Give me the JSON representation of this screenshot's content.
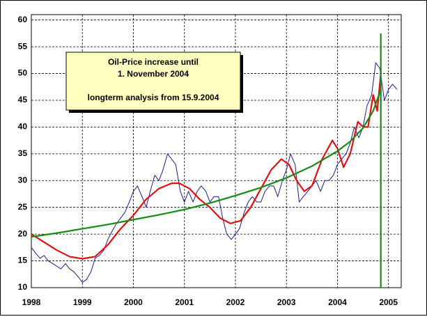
{
  "chart_data": {
    "type": "line",
    "annotation": [
      "Oil-Price increase until",
      "1. November 2004",
      "longterm analysis from 15.9.2004"
    ],
    "xlim": [
      1998,
      2005.25
    ],
    "xticks": [
      1998,
      1999,
      2000,
      2001,
      2002,
      2003,
      2004,
      2005
    ],
    "ylim": [
      10,
      61
    ],
    "yticks": [
      10,
      15,
      20,
      25,
      30,
      35,
      40,
      45,
      50,
      55,
      60
    ],
    "grid": true,
    "series": [
      {
        "color": "#1c1c8c",
        "x": [
          1998,
          1998.08,
          1998.17,
          1998.25,
          1998.33,
          1998.42,
          1998.5,
          1998.58,
          1998.67,
          1998.75,
          1998.83,
          1998.92,
          1999,
          1999.08,
          1999.17,
          1999.25,
          1999.33,
          1999.42,
          1999.5,
          1999.58,
          1999.67,
          1999.75,
          1999.83,
          1999.92,
          2000,
          2000.08,
          2000.17,
          2000.25,
          2000.33,
          2000.42,
          2000.5,
          2000.58,
          2000.67,
          2000.75,
          2000.83,
          2000.92,
          2001,
          2001.08,
          2001.17,
          2001.25,
          2001.33,
          2001.42,
          2001.5,
          2001.58,
          2001.67,
          2001.75,
          2001.83,
          2001.92,
          2002,
          2002.08,
          2002.17,
          2002.25,
          2002.33,
          2002.42,
          2002.5,
          2002.58,
          2002.67,
          2002.75,
          2002.83,
          2002.92,
          2003,
          2003.08,
          2003.17,
          2003.25,
          2003.33,
          2003.42,
          2003.5,
          2003.58,
          2003.67,
          2003.75,
          2003.83,
          2003.92,
          2004,
          2004.08,
          2004.17,
          2004.25,
          2004.33,
          2004.42,
          2004.5,
          2004.58,
          2004.67,
          2004.75,
          2004.83,
          2004.92,
          2005,
          2005.08,
          2005.17
        ],
        "values": [
          17.5,
          16.5,
          15.5,
          16,
          15,
          14.5,
          14,
          13.5,
          14.5,
          13.5,
          13,
          12,
          11,
          11.5,
          13,
          15.5,
          16,
          17,
          19,
          20.5,
          22,
          23,
          24,
          26,
          28,
          29,
          27,
          25,
          28,
          31,
          30,
          32,
          35,
          34,
          33,
          28,
          26,
          28,
          26,
          28,
          29,
          28,
          26,
          27,
          27,
          23,
          20,
          19,
          20,
          21,
          24,
          26,
          27,
          26,
          26,
          28,
          29,
          29,
          27,
          30,
          32,
          35,
          33,
          26,
          27,
          28,
          29,
          30,
          28,
          30,
          30,
          31,
          33,
          34,
          35,
          37,
          40,
          38,
          40,
          44,
          46,
          52,
          51,
          45,
          47,
          48,
          47
        ]
      },
      {
        "color": "#e01010",
        "x": [
          1998,
          1998.25,
          1998.5,
          1998.75,
          1999,
          1999.25,
          1999.5,
          1999.75,
          2000,
          2000.25,
          2000.5,
          2000.75,
          2000.9,
          2001.1,
          2001.3,
          2001.5,
          2001.7,
          2001.9,
          2002.1,
          2002.3,
          2002.5,
          2002.7,
          2002.9,
          2003.05,
          2003.2,
          2003.35,
          2003.5,
          2003.7,
          2003.9,
          2004,
          2004.12,
          2004.25,
          2004.4,
          2004.5,
          2004.6,
          2004.7,
          2004.78,
          2004.85
        ],
        "values": [
          20,
          18.5,
          17,
          15.8,
          15.4,
          15.8,
          18,
          21,
          23.5,
          26.5,
          28.5,
          29.5,
          29.5,
          28.5,
          26.5,
          25,
          23,
          22,
          22.5,
          25,
          28.5,
          32,
          34,
          33,
          30,
          28,
          29,
          34,
          37.5,
          36,
          32.5,
          35,
          41,
          40,
          40,
          46,
          43,
          50
        ]
      },
      {
        "color": "#168a16",
        "x": [
          1998,
          1998.5,
          1999,
          1999.5,
          2000,
          2000.5,
          2001,
          2001.5,
          2002,
          2002.5,
          2003,
          2003.5,
          2004,
          2004.25,
          2004.5,
          2004.7,
          2004.85
        ],
        "values": [
          19.5,
          20.2,
          21,
          21.8,
          22.7,
          23.6,
          24.6,
          25.8,
          27.2,
          28.7,
          30.5,
          32.7,
          35.5,
          37.3,
          39.8,
          43,
          47
        ]
      },
      {
        "color": "#168a16",
        "x": [
          2004.85,
          2004.85
        ],
        "values": [
          10,
          57.5
        ]
      }
    ]
  }
}
